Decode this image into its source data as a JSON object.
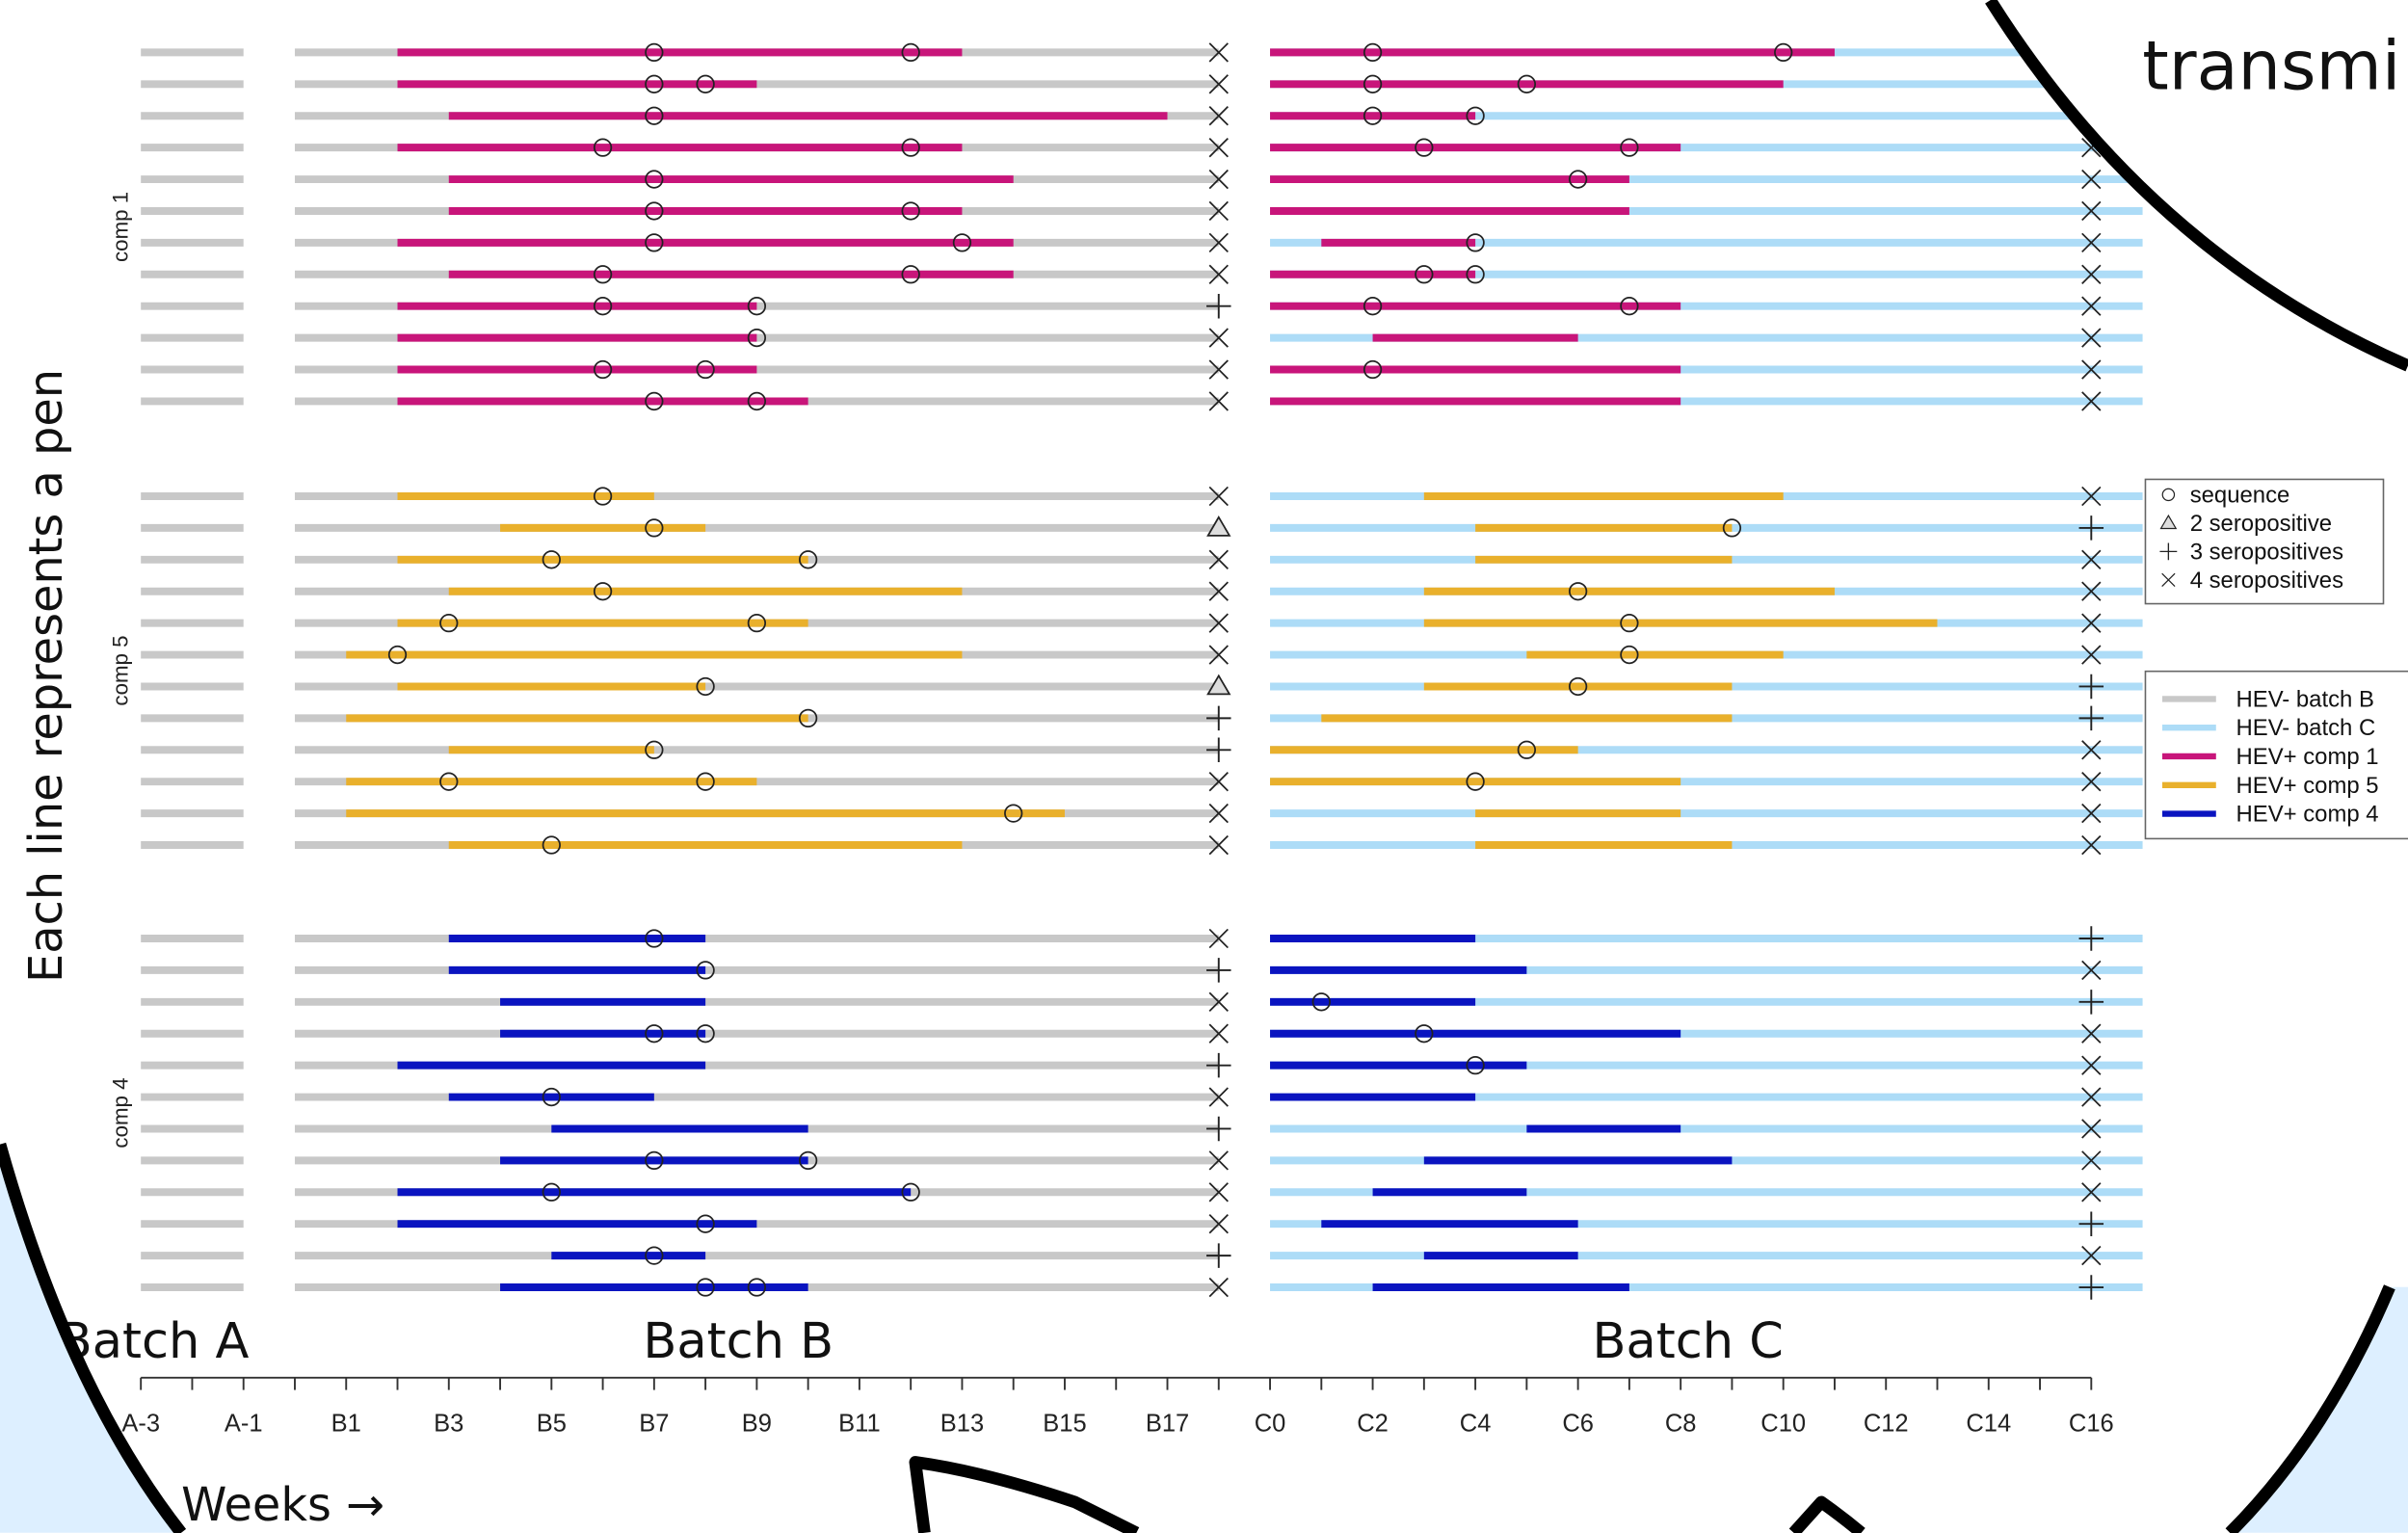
{
  "chart_data": {
    "type": "timeline",
    "y_label": "Each line represents a pen",
    "x_label": "Weeks →",
    "annotation": "transmi",
    "xlim": [
      -4,
      37
    ],
    "xticks": [
      {
        "value": -3,
        "label": "A-3"
      },
      {
        "value": -1,
        "label": "A-1"
      },
      {
        "value": 1,
        "label": "B1"
      },
      {
        "value": 3,
        "label": "B3"
      },
      {
        "value": 5,
        "label": "B5"
      },
      {
        "value": 7,
        "label": "B7"
      },
      {
        "value": 9,
        "label": "B9"
      },
      {
        "value": 11,
        "label": "B11"
      },
      {
        "value": 13,
        "label": "B13"
      },
      {
        "value": 15,
        "label": "B15"
      },
      {
        "value": 17,
        "label": "B17"
      },
      {
        "value": 19,
        "label": "C0"
      },
      {
        "value": 21,
        "label": "C2"
      },
      {
        "value": 23,
        "label": "C4"
      },
      {
        "value": 25,
        "label": "C6"
      },
      {
        "value": 27,
        "label": "C8"
      },
      {
        "value": 29,
        "label": "C10"
      },
      {
        "value": 31,
        "label": "C12"
      },
      {
        "value": 33,
        "label": "C14"
      },
      {
        "value": 35,
        "label": "C16"
      }
    ],
    "xticks_minor": [
      -2,
      0,
      2,
      4,
      6,
      8,
      10,
      12,
      14,
      16,
      18,
      20,
      22,
      24,
      26,
      28,
      30,
      32,
      34
    ],
    "batches": [
      {
        "label": "Batch A",
        "span": [
          -3,
          -1
        ]
      },
      {
        "label": "Batch B",
        "span": [
          0,
          18
        ],
        "test_week": 18
      },
      {
        "label": "Batch C",
        "span": [
          19,
          36
        ],
        "test_week": 35
      }
    ],
    "marker_legend": [
      "sequence",
      "2 seropositive",
      "3 seropositives",
      "4 seropositives"
    ],
    "line_legend": [
      {
        "name": "HEV- batch B",
        "color": "#c8c8c8"
      },
      {
        "name": "HEV- batch C",
        "color": "#addcf7"
      },
      {
        "name": "HEV+ comp 1",
        "color": "#c8157a"
      },
      {
        "name": "HEV+ comp 5",
        "color": "#e9b02c"
      },
      {
        "name": "HEV+ comp 4",
        "color": "#0a14c0"
      }
    ],
    "groups": [
      {
        "name": "comp 1",
        "color": "#c8157a",
        "pens": [
          {
            "b": {
              "hev": [
                2,
                13
              ],
              "seq": [
                7,
                12
              ],
              "sero": 4
            },
            "c": {
              "hev": [
                19,
                30
              ],
              "seq": [
                21,
                29
              ],
              "sero": null
            }
          },
          {
            "b": {
              "hev": [
                2,
                9
              ],
              "seq": [
                7,
                8
              ],
              "sero": 4
            },
            "c": {
              "hev": [
                19,
                29
              ],
              "seq": [
                21,
                24
              ],
              "sero": null
            }
          },
          {
            "b": {
              "hev": [
                3,
                17
              ],
              "seq": [
                7
              ],
              "sero": 4
            },
            "c": {
              "hev": [
                19,
                23
              ],
              "seq": [
                21,
                23
              ],
              "sero": null
            }
          },
          {
            "b": {
              "hev": [
                2,
                13
              ],
              "seq": [
                6,
                12
              ],
              "sero": 4
            },
            "c": {
              "hev": [
                19,
                27
              ],
              "seq": [
                22,
                26
              ],
              "sero": 4
            }
          },
          {
            "b": {
              "hev": [
                3,
                14
              ],
              "seq": [
                7
              ],
              "sero": 4
            },
            "c": {
              "hev": [
                19,
                26
              ],
              "seq": [
                25
              ],
              "sero": 4
            }
          },
          {
            "b": {
              "hev": [
                3,
                13
              ],
              "seq": [
                7,
                12
              ],
              "sero": 4
            },
            "c": {
              "hev": [
                19,
                26
              ],
              "seq": [],
              "sero": 4
            }
          },
          {
            "b": {
              "hev": [
                2,
                14
              ],
              "seq": [
                7,
                13
              ],
              "sero": 4
            },
            "c": {
              "hev": [
                20,
                23
              ],
              "seq": [
                23
              ],
              "sero": 4
            }
          },
          {
            "b": {
              "hev": [
                3,
                14
              ],
              "seq": [
                6,
                12
              ],
              "sero": 4
            },
            "c": {
              "hev": [
                19,
                23
              ],
              "seq": [
                22,
                23
              ],
              "sero": 4
            }
          },
          {
            "b": {
              "hev": [
                2,
                9
              ],
              "seq": [
                6,
                9
              ],
              "sero": 3
            },
            "c": {
              "hev": [
                19,
                27
              ],
              "seq": [
                21,
                26
              ],
              "sero": 4
            }
          },
          {
            "b": {
              "hev": [
                2,
                9
              ],
              "seq": [
                9
              ],
              "sero": 4
            },
            "c": {
              "hev": [
                21,
                25
              ],
              "seq": [],
              "sero": 4
            }
          },
          {
            "b": {
              "hev": [
                2,
                9
              ],
              "seq": [
                6,
                8
              ],
              "sero": 4
            },
            "c": {
              "hev": [
                19,
                27
              ],
              "seq": [
                21
              ],
              "sero": 4
            }
          },
          {
            "b": {
              "hev": [
                2,
                10
              ],
              "seq": [
                7,
                9
              ],
              "sero": 4
            },
            "c": {
              "hev": [
                19,
                27
              ],
              "seq": [],
              "sero": 4
            }
          }
        ]
      },
      {
        "name": "comp 5",
        "color": "#e9b02c",
        "pens": [
          {
            "b": {
              "hev": [
                2,
                7
              ],
              "seq": [
                6
              ],
              "sero": 4
            },
            "c": {
              "hev": [
                22,
                29
              ],
              "seq": [],
              "sero": 4
            }
          },
          {
            "b": {
              "hev": [
                4,
                8
              ],
              "seq": [
                7
              ],
              "sero": 2
            },
            "c": {
              "hev": [
                23,
                28
              ],
              "seq": [
                28
              ],
              "sero": 3
            }
          },
          {
            "b": {
              "hev": [
                2,
                10
              ],
              "seq": [
                5,
                10
              ],
              "sero": 4
            },
            "c": {
              "hev": [
                23,
                28
              ],
              "seq": [],
              "sero": 4
            }
          },
          {
            "b": {
              "hev": [
                3,
                13
              ],
              "seq": [
                6
              ],
              "sero": 4
            },
            "c": {
              "hev": [
                22,
                30
              ],
              "seq": [
                25
              ],
              "sero": 4
            }
          },
          {
            "b": {
              "hev": [
                2,
                10
              ],
              "seq": [
                3,
                9
              ],
              "sero": 4
            },
            "c": {
              "hev": [
                22,
                32
              ],
              "seq": [
                26
              ],
              "sero": 4
            }
          },
          {
            "b": {
              "hev": [
                1,
                13
              ],
              "seq": [
                2
              ],
              "sero": 4
            },
            "c": {
              "hev": [
                24,
                29
              ],
              "seq": [
                26
              ],
              "sero": 4
            }
          },
          {
            "b": {
              "hev": [
                2,
                8
              ],
              "seq": [
                8
              ],
              "sero": 2
            },
            "c": {
              "hev": [
                22,
                28
              ],
              "seq": [
                25
              ],
              "sero": 3
            }
          },
          {
            "b": {
              "hev": [
                1,
                10
              ],
              "seq": [
                10
              ],
              "sero": 3
            },
            "c": {
              "hev": [
                20,
                28
              ],
              "seq": [],
              "sero": 3
            }
          },
          {
            "b": {
              "hev": [
                3,
                7
              ],
              "seq": [
                7
              ],
              "sero": 3
            },
            "c": {
              "hev": [
                19,
                25
              ],
              "seq": [
                24
              ],
              "sero": 4
            }
          },
          {
            "b": {
              "hev": [
                1,
                9
              ],
              "seq": [
                3,
                8
              ],
              "sero": 4
            },
            "c": {
              "hev": [
                19,
                27
              ],
              "seq": [
                23
              ],
              "sero": 4
            }
          },
          {
            "b": {
              "hev": [
                1,
                15
              ],
              "seq": [
                14
              ],
              "sero": 4
            },
            "c": {
              "hev": [
                23,
                27
              ],
              "seq": [],
              "sero": 4
            }
          },
          {
            "b": {
              "hev": [
                3,
                13
              ],
              "seq": [
                5
              ],
              "sero": 4
            },
            "c": {
              "hev": [
                23,
                28
              ],
              "seq": [],
              "sero": 4
            }
          }
        ]
      },
      {
        "name": "comp 4",
        "color": "#0a14c0",
        "pens": [
          {
            "b": {
              "hev": [
                3,
                8
              ],
              "seq": [
                7
              ],
              "sero": 4
            },
            "c": {
              "hev": [
                19,
                23
              ],
              "seq": [],
              "sero": 3
            }
          },
          {
            "b": {
              "hev": [
                3,
                8
              ],
              "seq": [
                8
              ],
              "sero": 3
            },
            "c": {
              "hev": [
                19,
                24
              ],
              "seq": [],
              "sero": 4
            }
          },
          {
            "b": {
              "hev": [
                4,
                8
              ],
              "seq": [],
              "sero": 4
            },
            "c": {
              "hev": [
                19,
                23
              ],
              "seq": [
                20
              ],
              "sero": 3
            }
          },
          {
            "b": {
              "hev": [
                4,
                8
              ],
              "seq": [
                7,
                8
              ],
              "sero": 4
            },
            "c": {
              "hev": [
                19,
                27
              ],
              "seq": [
                22
              ],
              "sero": 4
            }
          },
          {
            "b": {
              "hev": [
                2,
                8
              ],
              "seq": [],
              "sero": 3
            },
            "c": {
              "hev": [
                19,
                24
              ],
              "seq": [
                23
              ],
              "sero": 4
            }
          },
          {
            "b": {
              "hev": [
                3,
                7
              ],
              "seq": [
                5
              ],
              "sero": 4
            },
            "c": {
              "hev": [
                19,
                23
              ],
              "seq": [],
              "sero": 4
            }
          },
          {
            "b": {
              "hev": [
                5,
                10
              ],
              "seq": [],
              "sero": 3
            },
            "c": {
              "hev": [
                24,
                27
              ],
              "seq": [],
              "sero": 4
            }
          },
          {
            "b": {
              "hev": [
                4,
                10
              ],
              "seq": [
                7,
                10
              ],
              "sero": 4
            },
            "c": {
              "hev": [
                22,
                28
              ],
              "seq": [],
              "sero": 4
            }
          },
          {
            "b": {
              "hev": [
                2,
                12
              ],
              "seq": [
                5,
                12
              ],
              "sero": 4
            },
            "c": {
              "hev": [
                21,
                24
              ],
              "seq": [],
              "sero": 4
            }
          },
          {
            "b": {
              "hev": [
                2,
                9
              ],
              "seq": [
                8
              ],
              "sero": 4
            },
            "c": {
              "hev": [
                20,
                25
              ],
              "seq": [],
              "sero": 3
            }
          },
          {
            "b": {
              "hev": [
                5,
                8
              ],
              "seq": [
                7
              ],
              "sero": 3
            },
            "c": {
              "hev": [
                22,
                25
              ],
              "seq": [],
              "sero": 4
            }
          },
          {
            "b": {
              "hev": [
                4,
                10
              ],
              "seq": [
                8,
                9
              ],
              "sero": 4
            },
            "c": {
              "hev": [
                21,
                26
              ],
              "seq": [],
              "sero": 3
            }
          }
        ]
      }
    ]
  }
}
